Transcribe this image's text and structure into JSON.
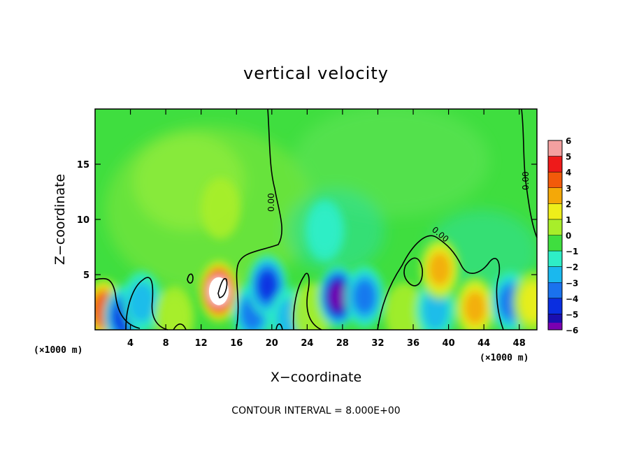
{
  "chart_data": {
    "type": "heatmap",
    "title": "vertical velocity",
    "xlabel": "X−coordinate",
    "ylabel": "Z−coordinate",
    "x_unit_left": "(×1000 m)",
    "x_unit_right": "(×1000 m)",
    "xlim": [
      0,
      50
    ],
    "ylim": [
      0,
      20
    ],
    "x_ticks": [
      4,
      8,
      12,
      16,
      20,
      24,
      28,
      32,
      36,
      40,
      44,
      48
    ],
    "y_ticks": [
      5,
      10,
      15
    ],
    "colorbar": {
      "levels": [
        6,
        5,
        4,
        3,
        2,
        1,
        0,
        -1,
        -2,
        -3,
        -4,
        -5,
        -6
      ],
      "labels": [
        "6",
        "5",
        "4",
        "3",
        "2",
        "1",
        "0",
        "−1",
        "−2",
        "−3",
        "−4",
        "−5",
        "−6"
      ]
    },
    "contour_label": "0.00",
    "contour_interval_text": "CONTOUR INTERVAL = 8.000E+00",
    "features": [
      {
        "x": 1.0,
        "z": 1.8,
        "w": 4.5
      },
      {
        "x": 3.2,
        "z": 1.2,
        "w": -3.5
      },
      {
        "x": 5.3,
        "z": 2.5,
        "w": -2.0
      },
      {
        "x": 9.0,
        "z": 1.2,
        "w": 1.5
      },
      {
        "x": 14.0,
        "z": 3.5,
        "w": 7.0
      },
      {
        "x": 14.2,
        "z": 11.0,
        "w": 1.0
      },
      {
        "x": 17.8,
        "z": 1.5,
        "w": -3.0
      },
      {
        "x": 19.5,
        "z": 4.0,
        "w": -4.0
      },
      {
        "x": 22.0,
        "z": 1.0,
        "w": -2.0
      },
      {
        "x": 24.5,
        "z": 1.5,
        "w": 1.0
      },
      {
        "x": 27.5,
        "z": 3.0,
        "w": -6.0
      },
      {
        "x": 30.5,
        "z": 3.0,
        "w": -2.5
      },
      {
        "x": 35.0,
        "z": 1.5,
        "w": 1.0
      },
      {
        "x": 38.5,
        "z": 1.8,
        "w": -2.0
      },
      {
        "x": 39.0,
        "z": 5.5,
        "w": 3.0
      },
      {
        "x": 43.0,
        "z": 2.0,
        "w": 3.0
      },
      {
        "x": 47.0,
        "z": 2.5,
        "w": -3.0
      },
      {
        "x": 26.0,
        "z": 9.0,
        "w": -1.2
      },
      {
        "x": 49.5,
        "z": 2.5,
        "w": 2.0
      }
    ]
  }
}
